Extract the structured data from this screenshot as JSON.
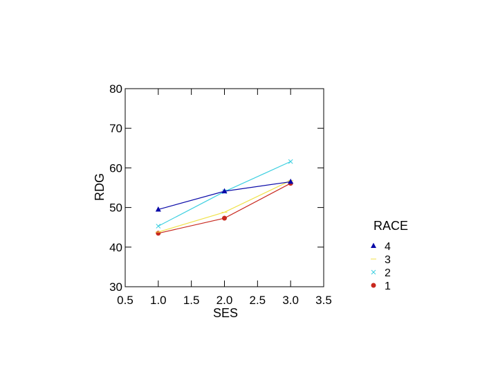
{
  "chart_data": {
    "type": "line",
    "xlabel": "SES",
    "ylabel": "RDG",
    "xlim": [
      0.5,
      3.5
    ],
    "ylim": [
      30,
      80
    ],
    "xticks": [
      "0.5",
      "1.0",
      "1.5",
      "2.0",
      "2.5",
      "3.0",
      "3.5"
    ],
    "yticks": [
      "30",
      "40",
      "50",
      "60",
      "70",
      "80"
    ],
    "grid": false,
    "legend_position": "right",
    "legend_title": "RACE",
    "x": [
      1.0,
      2.0,
      3.0
    ],
    "series": [
      {
        "name": "4",
        "values": [
          49.5,
          54.1,
          56.5
        ],
        "color": "#0a0aa8",
        "marker": "triangle"
      },
      {
        "name": "3",
        "values": [
          43.8,
          48.8,
          56.8
        ],
        "color": "#f0e24a",
        "marker": "dash"
      },
      {
        "name": "2",
        "values": [
          45.3,
          54.0,
          61.6
        ],
        "color": "#3ccfe0",
        "marker": "x"
      },
      {
        "name": "1",
        "values": [
          43.5,
          47.3,
          56.1
        ],
        "color": "#c8281e",
        "marker": "circle"
      }
    ]
  }
}
